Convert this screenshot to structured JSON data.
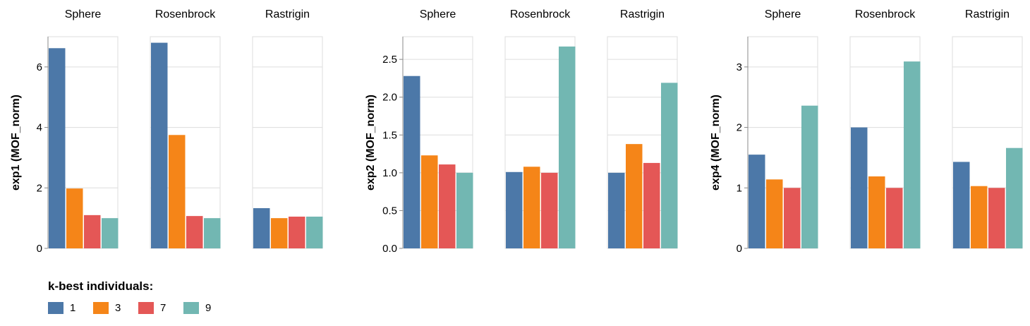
{
  "chart_data": {
    "type": "bar",
    "legend": {
      "title": "k-best individuals:",
      "placement": "bottom-left",
      "entries": [
        "1",
        "3",
        "7",
        "9"
      ]
    },
    "colors": {
      "1": "#4c78a8",
      "3": "#f58518",
      "7": "#e45756",
      "9": "#72b7b2"
    },
    "grid": true,
    "panels": [
      {
        "ylabel": "exp1 (MOF_norm)",
        "ylim": [
          0,
          7
        ],
        "yticks": [
          0,
          2,
          4,
          6
        ],
        "ytick_labels": [
          "0",
          "2",
          "4",
          "6"
        ],
        "facets": [
          {
            "title": "Sphere",
            "series": [
              {
                "k": "1",
                "value": 6.62
              },
              {
                "k": "3",
                "value": 1.98
              },
              {
                "k": "7",
                "value": 1.1
              },
              {
                "k": "9",
                "value": 1.0
              }
            ]
          },
          {
            "title": "Rosenbrock",
            "series": [
              {
                "k": "1",
                "value": 6.8
              },
              {
                "k": "3",
                "value": 3.75
              },
              {
                "k": "7",
                "value": 1.07
              },
              {
                "k": "9",
                "value": 1.0
              }
            ]
          },
          {
            "title": "Rastrigin",
            "series": [
              {
                "k": "1",
                "value": 1.33
              },
              {
                "k": "3",
                "value": 1.0
              },
              {
                "k": "7",
                "value": 1.05
              },
              {
                "k": "9",
                "value": 1.05
              }
            ]
          }
        ]
      },
      {
        "ylabel": "exp2 (MOF_norm)",
        "ylim": [
          0,
          2.8
        ],
        "yticks": [
          0,
          0.5,
          1.0,
          1.5,
          2.0,
          2.5
        ],
        "ytick_labels": [
          "0.0",
          "0.5",
          "1.0",
          "1.5",
          "2.0",
          "2.5"
        ],
        "facets": [
          {
            "title": "Sphere",
            "series": [
              {
                "k": "1",
                "value": 2.28
              },
              {
                "k": "3",
                "value": 1.23
              },
              {
                "k": "7",
                "value": 1.11
              },
              {
                "k": "9",
                "value": 1.0
              }
            ]
          },
          {
            "title": "Rosenbrock",
            "series": [
              {
                "k": "1",
                "value": 1.01
              },
              {
                "k": "3",
                "value": 1.08
              },
              {
                "k": "7",
                "value": 1.0
              },
              {
                "k": "9",
                "value": 2.67
              }
            ]
          },
          {
            "title": "Rastrigin",
            "series": [
              {
                "k": "1",
                "value": 1.0
              },
              {
                "k": "3",
                "value": 1.38
              },
              {
                "k": "7",
                "value": 1.13
              },
              {
                "k": "9",
                "value": 2.19
              }
            ]
          }
        ]
      },
      {
        "ylabel": "exp4 (MOF_norm)",
        "ylim": [
          0,
          3.5
        ],
        "yticks": [
          0,
          1,
          2,
          3
        ],
        "ytick_labels": [
          "0",
          "1",
          "2",
          "3"
        ],
        "facets": [
          {
            "title": "Sphere",
            "series": [
              {
                "k": "1",
                "value": 1.55
              },
              {
                "k": "3",
                "value": 1.14
              },
              {
                "k": "7",
                "value": 1.0
              },
              {
                "k": "9",
                "value": 2.36
              }
            ]
          },
          {
            "title": "Rosenbrock",
            "series": [
              {
                "k": "1",
                "value": 2.0
              },
              {
                "k": "3",
                "value": 1.19
              },
              {
                "k": "7",
                "value": 1.0
              },
              {
                "k": "9",
                "value": 3.09
              }
            ]
          },
          {
            "title": "Rastrigin",
            "series": [
              {
                "k": "1",
                "value": 1.43
              },
              {
                "k": "3",
                "value": 1.03
              },
              {
                "k": "7",
                "value": 1.0
              },
              {
                "k": "9",
                "value": 1.66
              }
            ]
          }
        ]
      }
    ]
  }
}
